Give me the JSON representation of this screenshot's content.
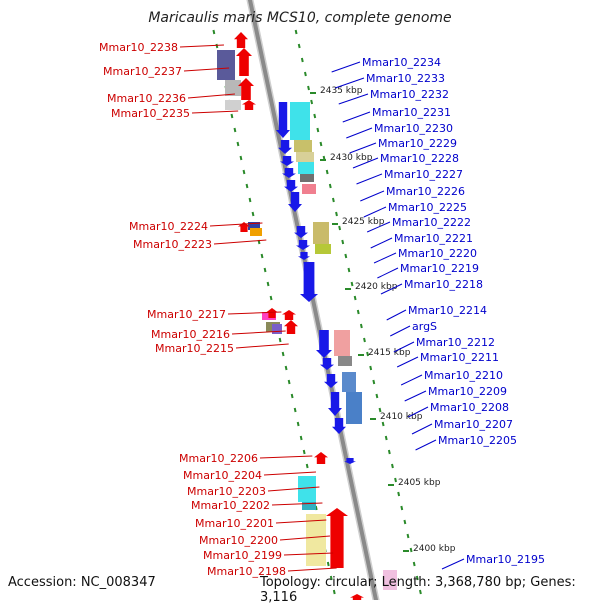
{
  "title": "Maricaulis maris MCS10, complete genome",
  "accession": "Accession: NC_008347",
  "topology": "Topology: circular; Length: 3,368,780 bp; Genes: 3,116",
  "colors": {
    "left_label": "#cc0000",
    "right_label": "#0000cc",
    "backbone": "#8a8a8a",
    "tick": "#2a8a2a"
  },
  "kbp_labels": [
    "2435 kbp",
    "2430 kbp",
    "2425 kbp",
    "2420 kbp",
    "2415 kbp",
    "2410 kbp",
    "2405 kbp",
    "2400 kbp"
  ],
  "left_genes": [
    "Mmar10_2238",
    "Mmar10_2237",
    "Mmar10_2236",
    "Mmar10_2235",
    "Mmar10_2224",
    "Mmar10_2223",
    "Mmar10_2217",
    "Mmar10_2216",
    "Mmar10_2215",
    "Mmar10_2206",
    "Mmar10_2204",
    "Mmar10_2203",
    "Mmar10_2202",
    "Mmar10_2201",
    "Mmar10_2200",
    "Mmar10_2199",
    "Mmar10_2198"
  ],
  "right_genes": [
    "Mmar10_2234",
    "Mmar10_2233",
    "Mmar10_2232",
    "Mmar10_2231",
    "Mmar10_2230",
    "Mmar10_2229",
    "Mmar10_2228",
    "Mmar10_2227",
    "Mmar10_2226",
    "Mmar10_2225",
    "Mmar10_2222",
    "Mmar10_2221",
    "Mmar10_2220",
    "Mmar10_2219",
    "Mmar10_2218",
    "Mmar10_2214",
    "argS",
    "Mmar10_2212",
    "Mmar10_2211",
    "Mmar10_2210",
    "Mmar10_2209",
    "Mmar10_2208",
    "Mmar10_2207",
    "Mmar10_2205",
    "Mmar10_2195"
  ]
}
